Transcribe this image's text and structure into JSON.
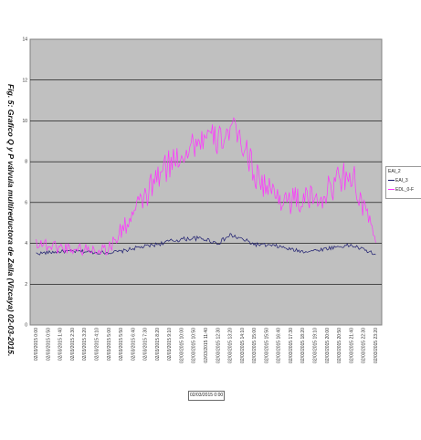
{
  "chart_data": {
    "type": "line",
    "title": "Fig. 5: Grafico Q y P válvula multireductora de Zalla (Vizcaya) 02-03-2015.",
    "xlabel": "02/03/2015 0:00",
    "ylabel": "",
    "ylim": [
      0,
      14
    ],
    "yticks": [
      "0",
      "2",
      "4",
      "6",
      "8",
      "10",
      "12",
      "14"
    ],
    "x_tick_labels": [
      "02/03/2015 0:00",
      "02/03/2015 0:50",
      "02/03/2015 1:40",
      "02/03/2015 2:30",
      "02/03/2015 3:20",
      "02/03/2015 4:10",
      "02/03/2015 5:00",
      "02/03/2015 5:50",
      "02/03/2015 6:40",
      "02/03/2015 7:30",
      "02/03/2015 8:20",
      "02/03/2015 9:10",
      "02/03/2015 10:00",
      "02/03/2015 10:50",
      "02/03/2015 11:40",
      "02/03/2015 12:30",
      "02/03/2015 13:20",
      "02/03/2015 14:10",
      "02/03/2015 15:00",
      "02/03/2015 15:50",
      "02/03/2015 16:40",
      "02/03/2015 17:30",
      "02/03/2015 18:20",
      "02/03/2015 19:10",
      "02/03/2015 20:00",
      "02/03/2015 20:50",
      "02/03/2015 21:40",
      "02/03/2015 22:30",
      "02/03/2015 23:20"
    ],
    "legend_title": "EAI_2",
    "grid": true,
    "legend_position": "right",
    "series": [
      {
        "name": "EAI_3",
        "color": "#1a1a6e",
        "profile": [
          [
            0,
            3.5
          ],
          [
            1,
            3.55
          ],
          [
            2,
            3.6
          ],
          [
            3,
            3.6
          ],
          [
            4,
            3.6
          ],
          [
            5,
            3.55
          ],
          [
            6,
            3.55
          ],
          [
            7,
            3.6
          ],
          [
            8,
            3.75
          ],
          [
            9,
            3.85
          ],
          [
            10,
            3.95
          ],
          [
            11,
            4.1
          ],
          [
            12,
            4.2
          ],
          [
            13,
            4.25
          ],
          [
            14,
            4.2
          ],
          [
            15,
            4.0
          ],
          [
            16,
            4.4
          ],
          [
            17,
            4.2
          ],
          [
            18,
            3.95
          ],
          [
            19,
            3.9
          ],
          [
            20,
            3.85
          ],
          [
            21,
            3.7
          ],
          [
            22,
            3.6
          ],
          [
            23,
            3.65
          ],
          [
            24,
            3.75
          ],
          [
            25,
            3.85
          ],
          [
            26,
            3.9
          ],
          [
            27,
            3.7
          ],
          [
            28,
            3.45
          ]
        ],
        "noise": 0.22
      },
      {
        "name": "EDL_0-F",
        "color": "#ff33ff",
        "profile": [
          [
            0,
            4.1
          ],
          [
            1,
            3.9
          ],
          [
            2,
            3.8
          ],
          [
            3,
            3.75
          ],
          [
            4,
            3.7
          ],
          [
            5,
            3.7
          ],
          [
            6,
            3.75
          ],
          [
            7,
            4.6
          ],
          [
            8,
            5.4
          ],
          [
            9,
            6.3
          ],
          [
            10,
            7.2
          ],
          [
            11,
            7.9
          ],
          [
            12,
            8.4
          ],
          [
            13,
            8.9
          ],
          [
            14,
            9.2
          ],
          [
            15,
            9.0
          ],
          [
            16,
            9.6
          ],
          [
            17,
            9.0
          ],
          [
            18,
            7.5
          ],
          [
            19,
            6.7
          ],
          [
            20,
            6.3
          ],
          [
            21,
            6.1
          ],
          [
            22,
            6.1
          ],
          [
            23,
            6.2
          ],
          [
            24,
            6.5
          ],
          [
            25,
            7.2
          ],
          [
            26,
            7.5
          ],
          [
            27,
            5.6
          ],
          [
            28,
            4.4
          ]
        ],
        "noise": 0.75
      }
    ]
  }
}
